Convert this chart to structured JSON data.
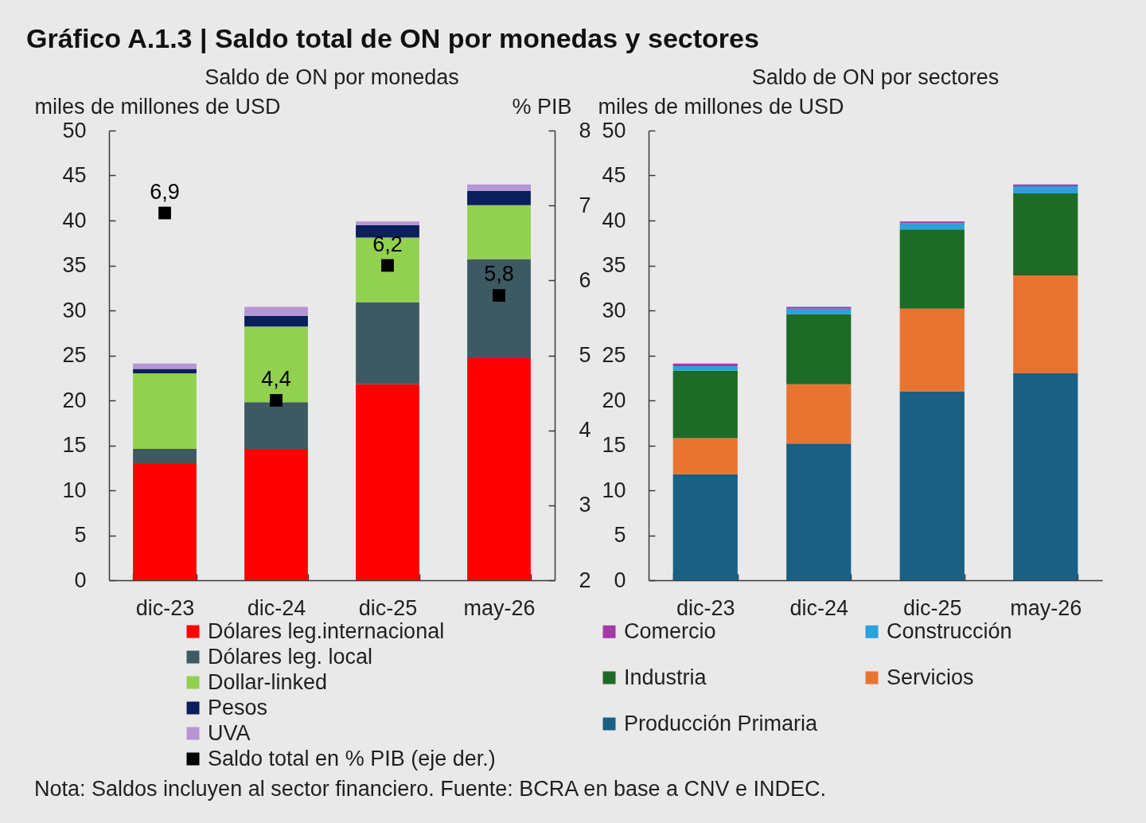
{
  "chart_data": [
    {
      "type": "bar",
      "title": "Gráfico A.1.3 | Saldo total de ON por monedas y sectores",
      "subtitle": "Saldo de ON por monedas",
      "ylabel": "miles de millones de USD",
      "y2label": "% PIB",
      "stacked": true,
      "categories": [
        "dic-23",
        "dic-24",
        "dic-25",
        "may-26"
      ],
      "series": [
        {
          "name": "Dólares leg.internacional",
          "color": "#ff0000",
          "values": [
            13.0,
            14.6,
            21.8,
            24.7
          ]
        },
        {
          "name": "Dólares leg. local",
          "color": "#3d5a63",
          "values": [
            1.6,
            5.2,
            9.1,
            11.0
          ]
        },
        {
          "name": "Dollar-linked",
          "color": "#92d050",
          "values": [
            8.4,
            8.4,
            7.2,
            6.0
          ]
        },
        {
          "name": "Pesos",
          "color": "#0b1f5c",
          "values": [
            0.5,
            1.2,
            1.4,
            1.6
          ]
        },
        {
          "name": "UVA",
          "color": "#b595d4",
          "values": [
            0.6,
            1.0,
            0.4,
            0.7
          ]
        },
        {
          "name": "Saldo total en % PIB (eje der.)",
          "type": "scatter",
          "axis": "y2",
          "marker": "square",
          "color": "#000000",
          "values": [
            6.9,
            4.4,
            6.2,
            5.8
          ],
          "value_labels": [
            "6,9",
            "4,4",
            "6,2",
            "5,8"
          ]
        }
      ],
      "ylim": [
        0,
        50
      ],
      "yticks": [
        0,
        5,
        10,
        15,
        20,
        25,
        30,
        35,
        40,
        45,
        50
      ],
      "y2lim": [
        2,
        8
      ],
      "y2ticks": [
        2,
        3,
        4,
        5,
        6,
        7,
        8
      ],
      "legend": "bottom",
      "annotations": [
        "Nota: Saldos incluyen al sector financiero. Fuente: BCRA en base a CNV e INDEC."
      ]
    },
    {
      "type": "bar",
      "subtitle": "Saldo de ON por sectores",
      "ylabel": "miles de millones de USD",
      "stacked": true,
      "categories": [
        "dic-23",
        "dic-24",
        "dic-25",
        "may-26"
      ],
      "series": [
        {
          "name": "Producción Primaria",
          "color": "#1a5f84",
          "values": [
            11.8,
            15.2,
            21.0,
            23.0
          ]
        },
        {
          "name": "Servicios",
          "color": "#e97432",
          "values": [
            4.0,
            6.6,
            9.2,
            10.9
          ]
        },
        {
          "name": "Industria",
          "color": "#1e6a27",
          "values": [
            7.5,
            7.8,
            8.8,
            9.1
          ]
        },
        {
          "name": "Construcción",
          "color": "#2aa2da",
          "values": [
            0.5,
            0.6,
            0.7,
            0.8
          ]
        },
        {
          "name": "Comercio",
          "color": "#a33aa6",
          "values": [
            0.3,
            0.2,
            0.2,
            0.2
          ]
        }
      ],
      "ylim": [
        0,
        50
      ],
      "yticks": [
        0,
        5,
        10,
        15,
        20,
        25,
        30,
        35,
        40,
        45,
        50
      ],
      "legend": "bottom"
    }
  ]
}
